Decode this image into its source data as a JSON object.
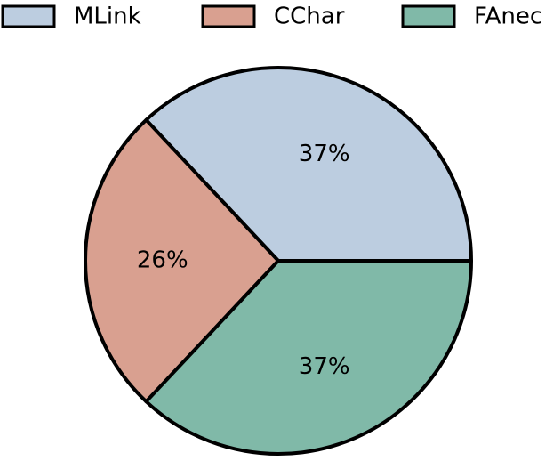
{
  "chart_data": {
    "type": "pie",
    "categories": [
      "MLink",
      "CChar",
      "FAnec"
    ],
    "values": [
      37,
      26,
      37
    ],
    "value_labels": [
      "37%",
      "26%",
      "37%"
    ],
    "colors": [
      "#bccde0",
      "#d9a090",
      "#80b9a8"
    ],
    "legend": "top"
  }
}
